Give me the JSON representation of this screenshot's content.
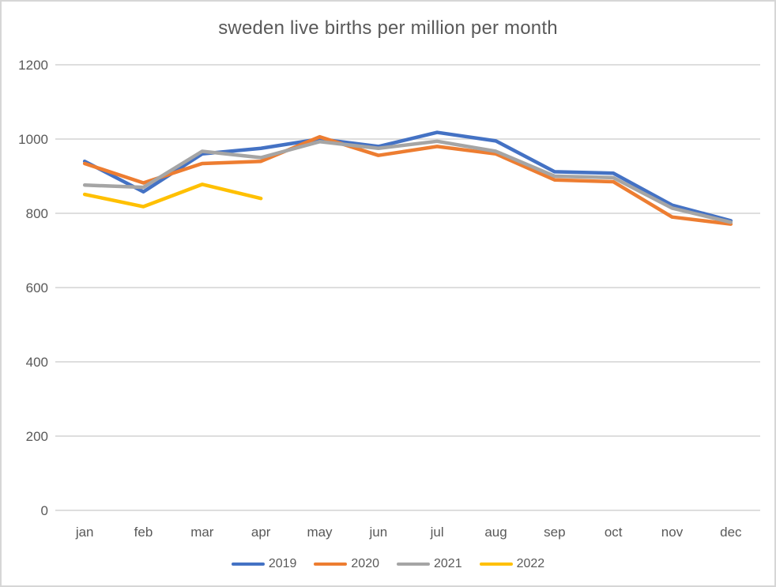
{
  "chart_data": {
    "type": "line",
    "title": "sweden live births per million per month",
    "categories": [
      "jan",
      "feb",
      "mar",
      "apr",
      "may",
      "jun",
      "jul",
      "aug",
      "sep",
      "oct",
      "nov",
      "dec"
    ],
    "series": [
      {
        "name": "2019",
        "color": "#4472C4",
        "values": [
          940,
          858,
          960,
          975,
          1000,
          980,
          1018,
          995,
          912,
          908,
          822,
          780
        ]
      },
      {
        "name": "2020",
        "color": "#ED7D31",
        "values": [
          934,
          882,
          934,
          940,
          1006,
          956,
          980,
          960,
          890,
          885,
          790,
          771
        ]
      },
      {
        "name": "2021",
        "color": "#A5A5A5",
        "values": [
          876,
          870,
          967,
          950,
          993,
          975,
          994,
          967,
          900,
          896,
          814,
          776
        ]
      },
      {
        "name": "2022",
        "color": "#FFC000",
        "values": [
          851,
          818,
          878,
          840,
          null,
          null,
          null,
          null,
          null,
          null,
          null,
          null
        ]
      }
    ],
    "xlabel": "",
    "ylabel": "",
    "ylim": [
      0,
      1200
    ],
    "yticks": [
      0,
      200,
      400,
      600,
      800,
      1000,
      1200
    ],
    "grid": true,
    "legend_position": "bottom",
    "colors": {
      "grid": "#D9D9D9",
      "text": "#595959",
      "border": "#D6D6D6",
      "background": "#FFFFFF"
    }
  }
}
